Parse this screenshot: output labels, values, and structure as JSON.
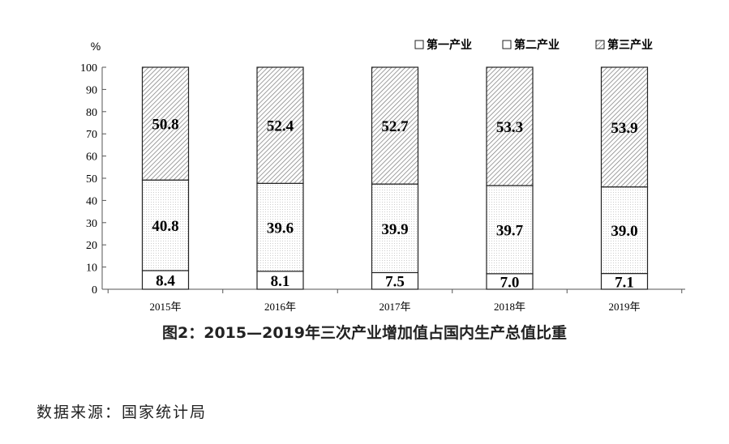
{
  "chart_data": {
    "type": "bar",
    "stacked": true,
    "categories": [
      "2015年",
      "2016年",
      "2017年",
      "2018年",
      "2019年"
    ],
    "series": [
      {
        "name": "第一产业",
        "values": [
          8.4,
          8.1,
          7.5,
          7.0,
          7.1
        ],
        "labels": [
          "8.4",
          "8.1",
          "7.5",
          "7.0",
          "7.1"
        ],
        "fill": "white"
      },
      {
        "name": "第二产业",
        "values": [
          40.8,
          39.6,
          39.9,
          39.7,
          39.0
        ],
        "labels": [
          "40.8",
          "39.6",
          "39.9",
          "39.7",
          "39.0"
        ],
        "fill": "dotted"
      },
      {
        "name": "第三产业",
        "values": [
          50.8,
          52.4,
          52.7,
          53.3,
          53.9
        ],
        "labels": [
          "50.8",
          "52.4",
          "52.7",
          "53.3",
          "53.9"
        ],
        "fill": "hatched"
      }
    ],
    "ylabel": "%",
    "ylim": [
      0,
      100
    ],
    "yticks": [
      "0",
      "10",
      "20",
      "30",
      "40",
      "50",
      "60",
      "70",
      "80",
      "90",
      "100"
    ],
    "legend": "top-right",
    "grid": false,
    "title": "图2：2015—2019年三次产业增加值占国内生产总值比重"
  },
  "source": "数据来源：国家统计局"
}
